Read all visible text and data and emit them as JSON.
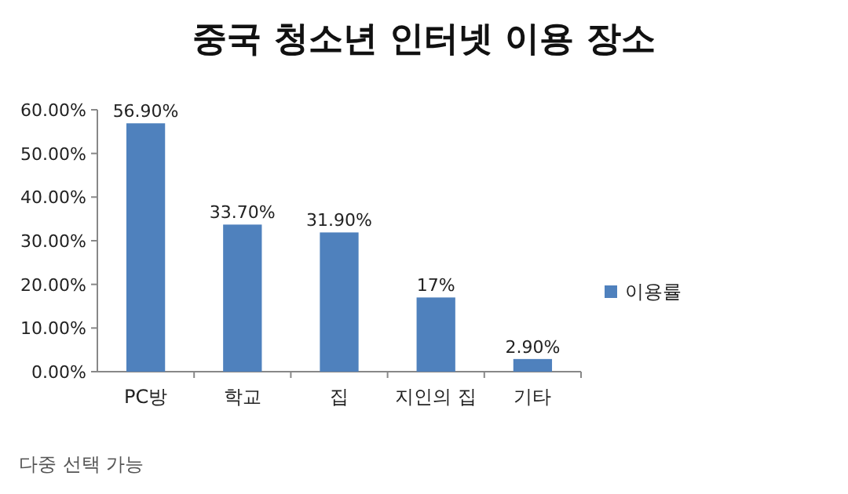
{
  "chart_data": {
    "type": "bar",
    "title": "중국 청소년 인터넷 이용 장소",
    "categories": [
      "PC방",
      "학교",
      "집",
      "지인의 집",
      "기타"
    ],
    "series": [
      {
        "name": "이용률",
        "color": "#4f81bd",
        "values": [
          56.9,
          33.7,
          31.9,
          17,
          2.9
        ],
        "value_labels": [
          "56.90%",
          "33.70%",
          "31.90%",
          "17%",
          "2.90%"
        ]
      }
    ],
    "ylim": [
      0,
      60
    ],
    "yticks": [
      {
        "value": 0,
        "label": "0.00%"
      },
      {
        "value": 10,
        "label": "10.00%"
      },
      {
        "value": 20,
        "label": "20.00%"
      },
      {
        "value": 30,
        "label": "30.00%"
      },
      {
        "value": 40,
        "label": "40.00%"
      },
      {
        "value": 50,
        "label": "50.00%"
      },
      {
        "value": 60,
        "label": "60.00%"
      }
    ],
    "grid": false,
    "legend": "right",
    "annotations": [
      "다중 선택 가능"
    ]
  }
}
